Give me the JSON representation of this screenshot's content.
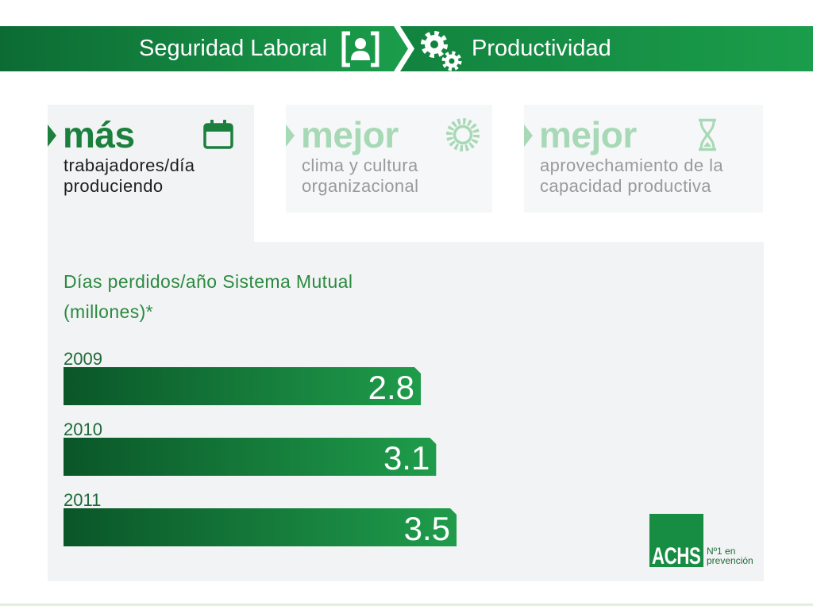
{
  "banner": {
    "left_label": "Seguridad Laboral",
    "left_icon": "worker-badge-icon",
    "right_label": "Productividad",
    "right_icon": "gears-icon"
  },
  "tabs": [
    {
      "heading": "más",
      "icon": "calendar-icon",
      "lines": [
        "trabajadores/día",
        "produciendo"
      ],
      "active": true
    },
    {
      "heading": "mejor",
      "icon": "sun-icon",
      "lines": [
        "clima y cultura",
        "organizacional"
      ],
      "active": false
    },
    {
      "heading": "mejor",
      "icon": "hourglass-icon",
      "lines": [
        "aprovechamiento de la",
        "capacidad productiva"
      ],
      "active": false
    }
  ],
  "chart_data": {
    "type": "bar",
    "orientation": "horizontal",
    "title": "Días perdidos/año Sistema Mutual",
    "subtitle": "(millones)*",
    "categories": [
      "2009",
      "2010",
      "2011"
    ],
    "values": [
      2.8,
      3.1,
      3.5
    ]
  },
  "logo": {
    "name": "ACHS",
    "tagline": [
      "Nº1 en",
      "prevención"
    ]
  },
  "colors": {
    "banner_dark": "#0c6b34",
    "banner_mid": "#12833f",
    "banner_bright": "#1b9d4b",
    "bar_dark": "#0a5628",
    "bar_bright": "#1f9c4b",
    "accent_green": "#1b7f3d",
    "title_green": "#2c8a40",
    "label_green": "#1e6a37",
    "muted_green": "#a7d9b6",
    "muted_text": "#9a9a9a",
    "panel_bg": "#f2f3f5",
    "tab_bg": "#f6f7f8",
    "logo_green": "#178c43",
    "footer_line": "#e4efdb"
  }
}
